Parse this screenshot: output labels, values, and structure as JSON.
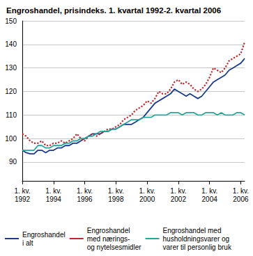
{
  "chart_data": {
    "type": "line",
    "title": "Engroshandel, prisindeks. 1. kvartal 1992-2. kvartal 2006",
    "categories": [
      "1. kv.\n1992",
      null,
      null,
      null,
      null,
      null,
      null,
      null,
      "1. kv.\n1994",
      null,
      null,
      null,
      null,
      null,
      null,
      null,
      "1. kv.\n1996",
      null,
      null,
      null,
      null,
      null,
      null,
      null,
      "1. kv.\n1998",
      null,
      null,
      null,
      null,
      null,
      null,
      null,
      "1. kv.\n2000",
      null,
      null,
      null,
      null,
      null,
      null,
      null,
      "1. kv.\n2002",
      null,
      null,
      null,
      null,
      null,
      null,
      null,
      "1. kv.\n2004",
      null,
      null,
      null,
      null,
      null,
      null,
      null,
      "1. kv.\n2006",
      null
    ],
    "series": [
      {
        "name": "Engroshandel\ni alt",
        "color": "#1a3a8f",
        "line_style": "solid",
        "values": [
          95,
          94,
          93.5,
          93.5,
          95,
          95,
          94,
          95,
          95,
          96,
          96,
          97,
          97,
          98,
          98,
          99,
          100,
          101,
          102,
          102,
          102,
          103,
          103,
          104,
          104,
          105,
          106,
          106,
          106,
          107,
          108,
          109,
          111,
          113,
          115,
          116,
          117,
          118,
          119,
          121,
          120,
          119,
          118,
          119,
          118,
          117,
          118,
          120,
          122,
          124,
          125,
          126,
          127,
          129,
          130,
          131,
          132,
          134
        ]
      },
      {
        "name": "Engroshandel\nmed nærings-\nog nytelsesmidler",
        "color": "#c0272d",
        "line_style": "dotted",
        "values": [
          102,
          101,
          99,
          98,
          98,
          99,
          97,
          97,
          98,
          98,
          99,
          98,
          99,
          100,
          102,
          100,
          99,
          101,
          102,
          101,
          102,
          103,
          104,
          104,
          105,
          106,
          108,
          109,
          110,
          112,
          113,
          114,
          116,
          115,
          117,
          120,
          119,
          119,
          121,
          124,
          125,
          123,
          124,
          123,
          121,
          120,
          121,
          123,
          126,
          130,
          129,
          128,
          130,
          133,
          134,
          135,
          136,
          141
        ]
      },
      {
        "name": "Engroshandel med\nhusholdningsvarer og\nvarer til personlig bruk",
        "color": "#2aa39a",
        "line_style": "solid",
        "values": [
          95,
          95,
          95,
          95,
          97,
          97,
          96,
          96,
          97,
          97,
          97,
          98,
          98,
          99,
          99,
          100,
          100,
          101,
          101,
          102,
          103,
          103,
          103,
          104,
          104,
          105,
          106,
          107,
          108,
          108,
          108,
          109,
          109,
          109,
          110,
          110,
          110,
          110,
          111,
          111,
          111,
          110,
          111,
          111,
          111,
          110,
          110,
          111,
          111,
          111,
          110,
          111,
          110,
          110,
          110,
          111,
          111,
          110
        ]
      }
    ],
    "ylim": [
      82,
      150
    ],
    "yticks": [
      90,
      100,
      110,
      120,
      130,
      140,
      150
    ],
    "grid": true,
    "legend": "bottom"
  }
}
